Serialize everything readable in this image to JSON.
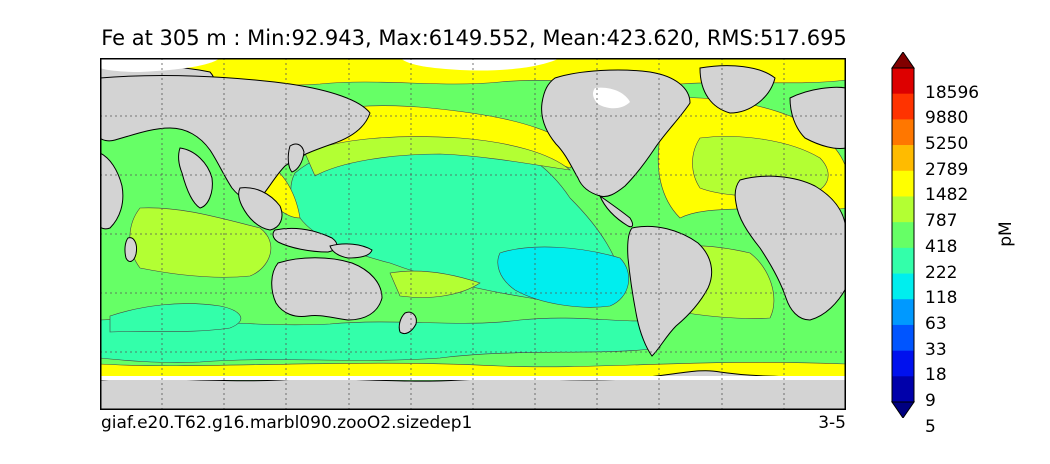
{
  "title": "Fe at 305 m : Min:92.943, Max:6149.552, Mean:423.620, RMS:517.695",
  "caption_left": "giaf.e20.T62.g16.marbl090.zooO2.sizedep1",
  "caption_right": "3-5",
  "colorbar": {
    "units": "pM",
    "labels": [
      "18596",
      "9880",
      "5250",
      "2789",
      "1482",
      "787",
      "418",
      "222",
      "118",
      "63",
      "33",
      "18",
      "9",
      "5"
    ],
    "colors_top_to_bottom": [
      "#800000",
      "#dd0000",
      "#ff3300",
      "#ff7700",
      "#ffbb00",
      "#ffff00",
      "#b3ff33",
      "#66ff66",
      "#33ffaa",
      "#00eeee",
      "#0099ff",
      "#0055ff",
      "#0011ee",
      "#0000aa",
      "#000080"
    ]
  },
  "colors": {
    "land": "#d3d3d3",
    "ice": "#ffffff",
    "c787": "#ffff00",
    "c418": "#b3ff33",
    "c222": "#66ff66",
    "c118": "#33ffaa",
    "c63": "#00eeee"
  }
}
